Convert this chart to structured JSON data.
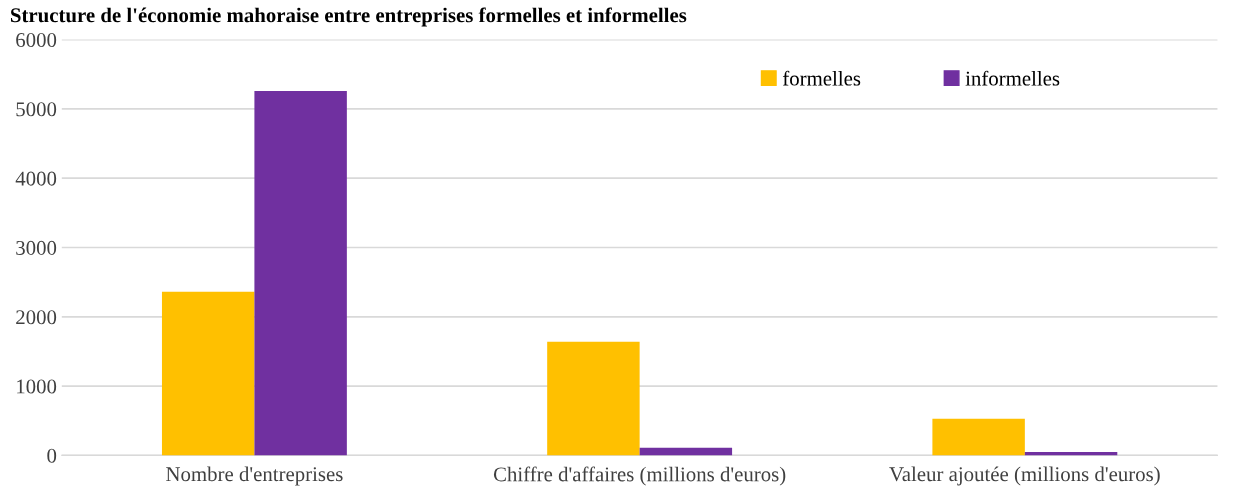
{
  "chart_data": {
    "type": "bar",
    "title": "Structure de l'économie mahoraise entre entreprises formelles et informelles",
    "categories": [
      "Nombre d'entreprises",
      "Chiffre d'affaires (millions d'euros)",
      "Valeur ajoutée (millions d'euros)"
    ],
    "series": [
      {
        "name": "formelles",
        "color": "#ffc000",
        "values": [
          2360,
          1640,
          530
        ]
      },
      {
        "name": "informelles",
        "color": "#7030a0",
        "values": [
          5260,
          110,
          50
        ]
      }
    ],
    "ylim": [
      0,
      6000
    ],
    "yticks": [
      0,
      1000,
      2000,
      3000,
      4000,
      5000,
      6000
    ],
    "grid": "y",
    "legend": "top right"
  }
}
